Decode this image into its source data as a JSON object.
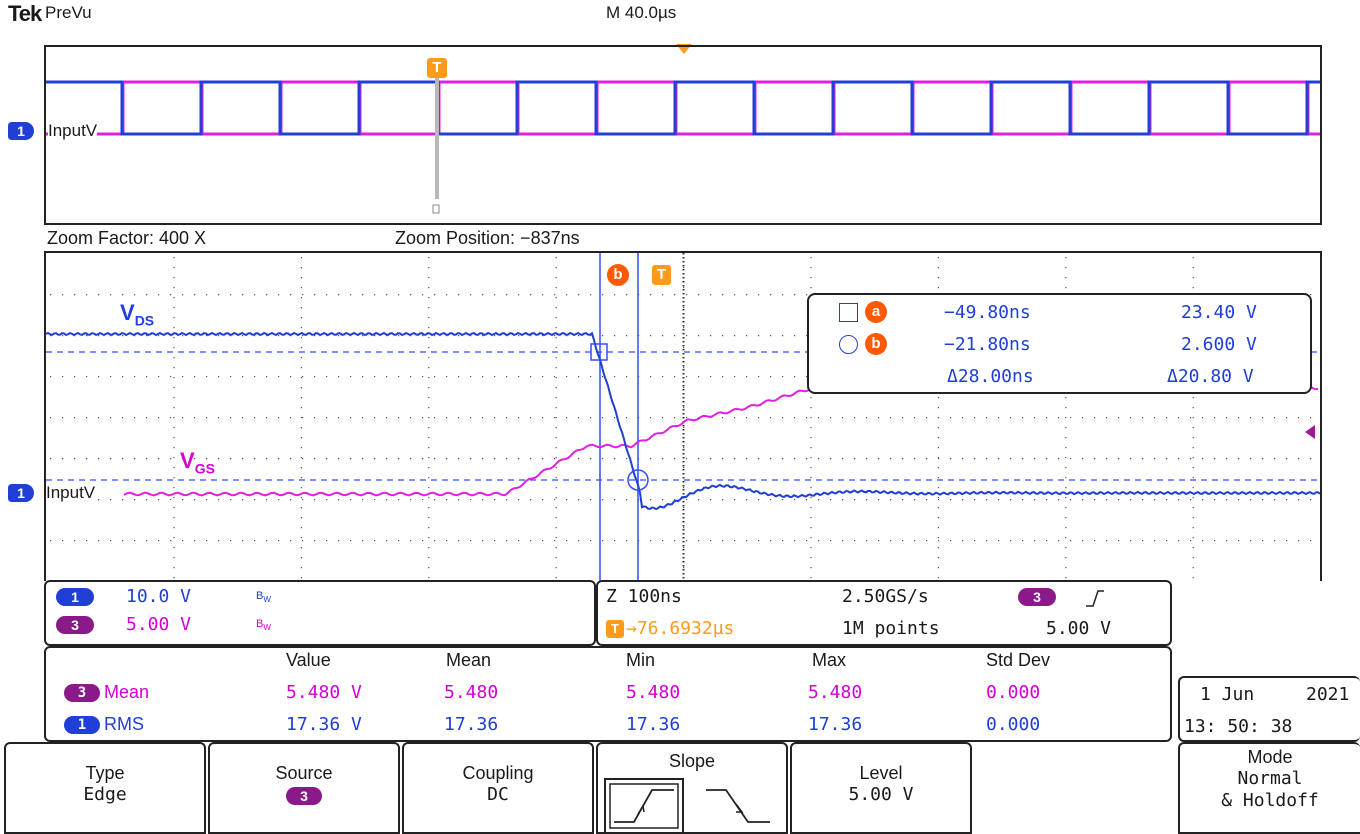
{
  "header": {
    "brand": "Tek",
    "mode": "PreVu",
    "timebase": "M 40.0µs"
  },
  "overview": {
    "channel_label": "InputV",
    "channel_number": "1",
    "trigger_marker": "T"
  },
  "zoom": {
    "factor_text": "Zoom Factor: 400 X",
    "position_text": "Zoom Position: −837ns"
  },
  "waveform": {
    "label_vds_main": "V",
    "label_vds_sub": "DS",
    "label_vgs_main": "V",
    "label_vgs_sub": "GS",
    "channel_label": "InputV",
    "channel_number": "1",
    "cursor_b_marker": "b",
    "trigger_marker": "T"
  },
  "cursor_readout": {
    "row_a": {
      "id": "a",
      "time": "−49.80ns",
      "value": "23.40 V"
    },
    "row_b": {
      "id": "b",
      "time": "−21.80ns",
      "value": "2.600 V"
    },
    "delta_time": "Δ28.00ns",
    "delta_value": "Δ20.80 V"
  },
  "channels": [
    {
      "num": "1",
      "scale": "10.0 V",
      "bw": "B",
      "color": "#1f3fd6"
    },
    {
      "num": "3",
      "scale": "5.00 V",
      "bw": "B",
      "color": "#8a1a8a"
    }
  ],
  "acquisition": {
    "zoom": "Z 100ns",
    "sample_rate": "2.50GS/s",
    "trigger_source": "3",
    "trigger_pos": "→76.6932µs",
    "record_length": "1M points",
    "trigger_level": "5.00 V"
  },
  "measurements": {
    "headers": [
      "Value",
      "Mean",
      "Min",
      "Max",
      "Std Dev"
    ],
    "rows": [
      {
        "ch": "3",
        "name": "Mean",
        "value": "5.480 V",
        "mean": "5.480",
        "min": "5.480",
        "max": "5.480",
        "std": "0.000"
      },
      {
        "ch": "1",
        "name": "RMS",
        "value": "17.36 V",
        "mean": "17.36",
        "min": "17.36",
        "max": "17.36",
        "std": "0.000"
      }
    ]
  },
  "datetime": {
    "date_day": "1 Jun",
    "date_year": "2021",
    "time": "13: 50: 38"
  },
  "softkeys": {
    "type_label": "Type",
    "type_value": "Edge",
    "source_label": "Source",
    "source_value": "3",
    "coupling_label": "Coupling",
    "coupling_value": "DC",
    "slope_label": "Slope",
    "level_label": "Level",
    "level_value": "5.00 V",
    "mode_label": "Mode",
    "mode_value1": "Normal",
    "mode_value2": "& Holdoff"
  },
  "colors": {
    "ch1": "#1f3fd6",
    "ch3": "#e020e0",
    "cursor": "#2f4fff",
    "orange": "#ff7a00",
    "purple_badge": "#8a1a8a"
  }
}
